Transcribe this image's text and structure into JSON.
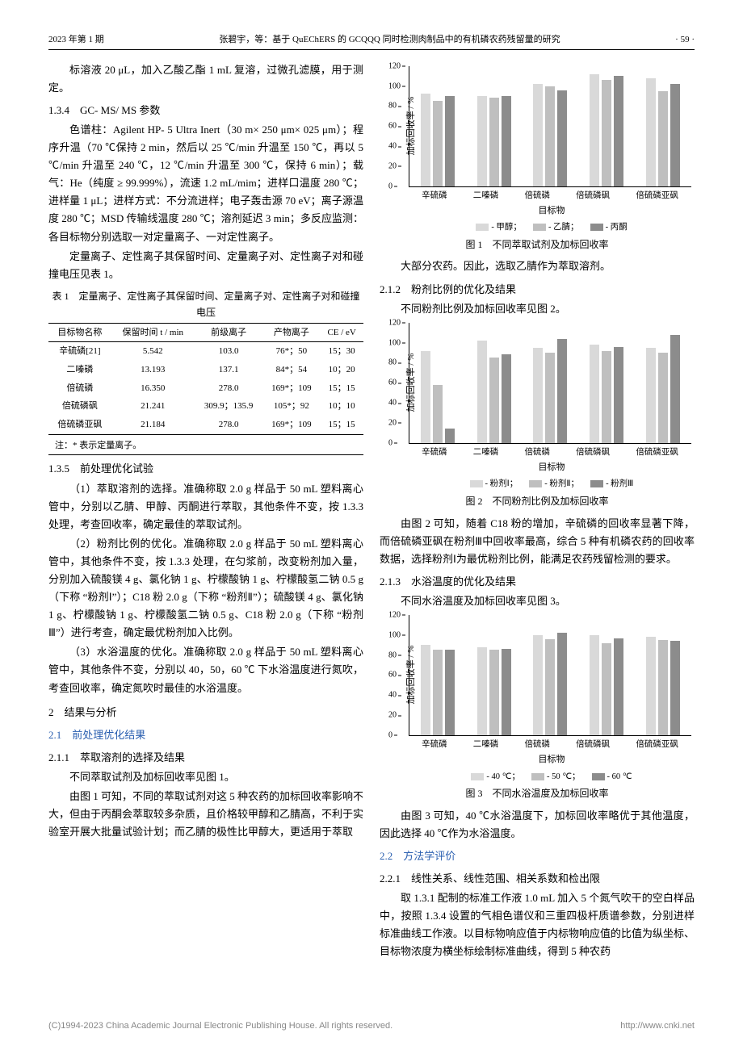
{
  "header": {
    "left": "2023 年第 1 期",
    "center": "张碧宇，等：基于 QuEChERS 的 GCQQQ 同时检测肉制品中的有机磷农药残留量的研究",
    "right": "· 59 ·"
  },
  "left_col": {
    "p1": "标溶液 20 μL，加入乙酸乙酯 1 mL 复溶，过微孔滤膜，用于测定。",
    "s134": "1.3.4　GC- MS/ MS 参数",
    "p2": "色谱柱：Agilent HP- 5 Ultra Inert（30 m× 250 μm× 025 μm）；程序升温（70 ℃保持 2 min，然后以 25 ℃/min 升温至 150 ℃，再以 5 ℃/min 升温至 240 ℃，12 ℃/min 升温至 300 ℃，保持 6 min）；载气：He（纯度 ≥ 99.999%），流速 1.2 mL/mim；进样口温度 280 ℃；进样量 1 μL；进样方式：不分流进样；电子轰击源 70 eV；离子源温度 280 ℃；MSD 传输线温度 280 ℃；溶剂延迟 3 min；多反应监测：各目标物分别选取一对定量离子、一对定性离子。",
    "p3": "定量离子、定性离子其保留时间、定量离子对、定性离子对和碰撞电压见表 1。",
    "table1_title": "表 1　定量离子、定性离子其保留时间、定量离子对、定性离子对和碰撞电压",
    "table1": {
      "columns": [
        "目标物名称",
        "保留时间 t / min",
        "前级离子",
        "产物离子",
        "CE / eV"
      ],
      "rows": [
        [
          "辛硫磷[21]",
          "5.542",
          "103.0",
          "76*；50",
          "15；30"
        ],
        [
          "二嗪磷",
          "13.193",
          "137.1",
          "84*；54",
          "10；20"
        ],
        [
          "倍硫磷",
          "16.350",
          "278.0",
          "169*；109",
          "15；15"
        ],
        [
          "倍硫磷砜",
          "21.241",
          "309.9；135.9",
          "105*；92",
          "10；10"
        ],
        [
          "倍硫磷亚砜",
          "21.184",
          "278.0",
          "169*；109",
          "15；15"
        ]
      ],
      "note": "注：* 表示定量离子。"
    },
    "s135": "1.3.5　前处理优化试验",
    "p4": "（1）萃取溶剂的选择。准确称取 2.0 g 样品于 50 mL 塑料离心管中，分别以乙腈、甲醇、丙酮进行萃取，其他条件不变，按 1.3.3 处理，考查回收率，确定最佳的萃取试剂。",
    "p5": "（2）粉剂比例的优化。准确称取 2.0 g 样品于 50 mL 塑料离心管中，其他条件不变，按 1.3.3 处理，在匀浆前，改变粉剂加入量，分别加入硫酸镁 4 g、氯化钠 1 g、柠檬酸钠 1 g、柠檬酸氢二钠 0.5 g（下称 “粉剂Ⅰ”）；C18 粉 2.0 g（下称 “粉剂Ⅱ”）；硫酸镁 4 g、氯化钠 1 g、柠檬酸钠 1 g、柠檬酸氢二钠 0.5 g、C18 粉 2.0 g（下称 “粉剂Ⅲ”）进行考查，确定最优粉剂加入比例。",
    "p6": "（3）水浴温度的优化。准确称取 2.0 g 样品于 50 mL 塑料离心管中，其他条件不变，分别以 40，50，60 ℃ 下水浴温度进行氮吹，考查回收率，确定氮吹时最佳的水浴温度。",
    "s2": "2　结果与分析",
    "s21": "2.1　前处理优化结果",
    "s211": "2.1.1　萃取溶剂的选择及结果",
    "p7": "不同萃取试剂及加标回收率见图 1。",
    "p8": "由图 1 可知，不同的萃取试剂对这 5 种农药的加标回收率影响不大，但由于丙酮会萃取较多杂质，且价格较甲醇和乙腈高，不利于实验室开展大批量试验计划；而乙腈的极性比甲醇大，更适用于萃取"
  },
  "right_col": {
    "p1": "大部分农药。因此，选取乙腈作为萃取溶剂。",
    "s212": "2.1.2　粉剂比例的优化及结果",
    "p2": "不同粉剂比例及加标回收率见图 2。",
    "p3": "由图 2 可知，随着 C18 粉的增加，辛硫磷的回收率显著下降，而倍硫磷亚砜在粉剂Ⅲ中回收率最高，综合 5 种有机磷农药的回收率数据，选择粉剂Ⅰ为最优粉剂比例，能满足农药残留检测的要求。",
    "s213": "2.1.3　水浴温度的优化及结果",
    "p4": "不同水浴温度及加标回收率见图 3。",
    "p5": "由图 3 可知，40 ℃水浴温度下，加标回收率略优于其他温度，因此选择 40 ℃作为水浴温度。",
    "s22": "2.2　方法学评价",
    "s221": "2.2.1　线性关系、线性范围、相关系数和检出限",
    "p6": "取 1.3.1 配制的标准工作液 1.0 mL 加入 5 个氮气吹干的空白样品中，按照 1.3.4 设置的气相色谱仪和三重四极杆质谱参数，分别进样标准曲线工作液。以目标物响应值于内标物响应值的比值为纵坐标、目标物浓度为横坐标绘制标准曲线，得到 5 种农药"
  },
  "charts": {
    "ylabel": "加标回收率 / %",
    "xlabel": "目标物",
    "categories": [
      "辛硫磷",
      "二嗪磷",
      "倍硫磷",
      "倍硫磷砜",
      "倍硫磷亚砜"
    ],
    "chart1": {
      "caption": "图 1　不同萃取试剂及加标回收率",
      "ymax": 120,
      "ytick_step": 20,
      "colors": [
        "#d9d9d9",
        "#bfbfbf",
        "#8c8c8c"
      ],
      "legend": [
        "- 甲醇；",
        "- 乙腈；",
        "- 丙酮"
      ],
      "series": [
        [
          92,
          85,
          90
        ],
        [
          90,
          88,
          90
        ],
        [
          102,
          100,
          96
        ],
        [
          112,
          106,
          110
        ],
        [
          108,
          95,
          102
        ]
      ]
    },
    "chart2": {
      "caption": "图 2　不同粉剂比例及加标回收率",
      "ymax": 120,
      "ytick_step": 20,
      "colors": [
        "#d9d9d9",
        "#bfbfbf",
        "#8c8c8c"
      ],
      "legend": [
        "- 粉剂Ⅰ；",
        "- 粉剂Ⅱ；",
        "- 粉剂Ⅲ"
      ],
      "series": [
        [
          92,
          58,
          14
        ],
        [
          102,
          85,
          88
        ],
        [
          95,
          90,
          104
        ],
        [
          98,
          92,
          96
        ],
        [
          95,
          90,
          108
        ]
      ]
    },
    "chart3": {
      "caption": "图 3　不同水浴温度及加标回收率",
      "ymax": 120,
      "ytick_step": 20,
      "colors": [
        "#d9d9d9",
        "#bfbfbf",
        "#8c8c8c"
      ],
      "legend": [
        "- 40 ℃；",
        "- 50 ℃；",
        "- 60 ℃"
      ],
      "series": [
        [
          90,
          85,
          85
        ],
        [
          88,
          85,
          86
        ],
        [
          100,
          96,
          102
        ],
        [
          100,
          92,
          97
        ],
        [
          98,
          95,
          94
        ]
      ]
    }
  },
  "footer": {
    "left": "(C)1994-2023 China Academic Journal Electronic Publishing House. All rights reserved.",
    "right": "http://www.cnki.net"
  }
}
